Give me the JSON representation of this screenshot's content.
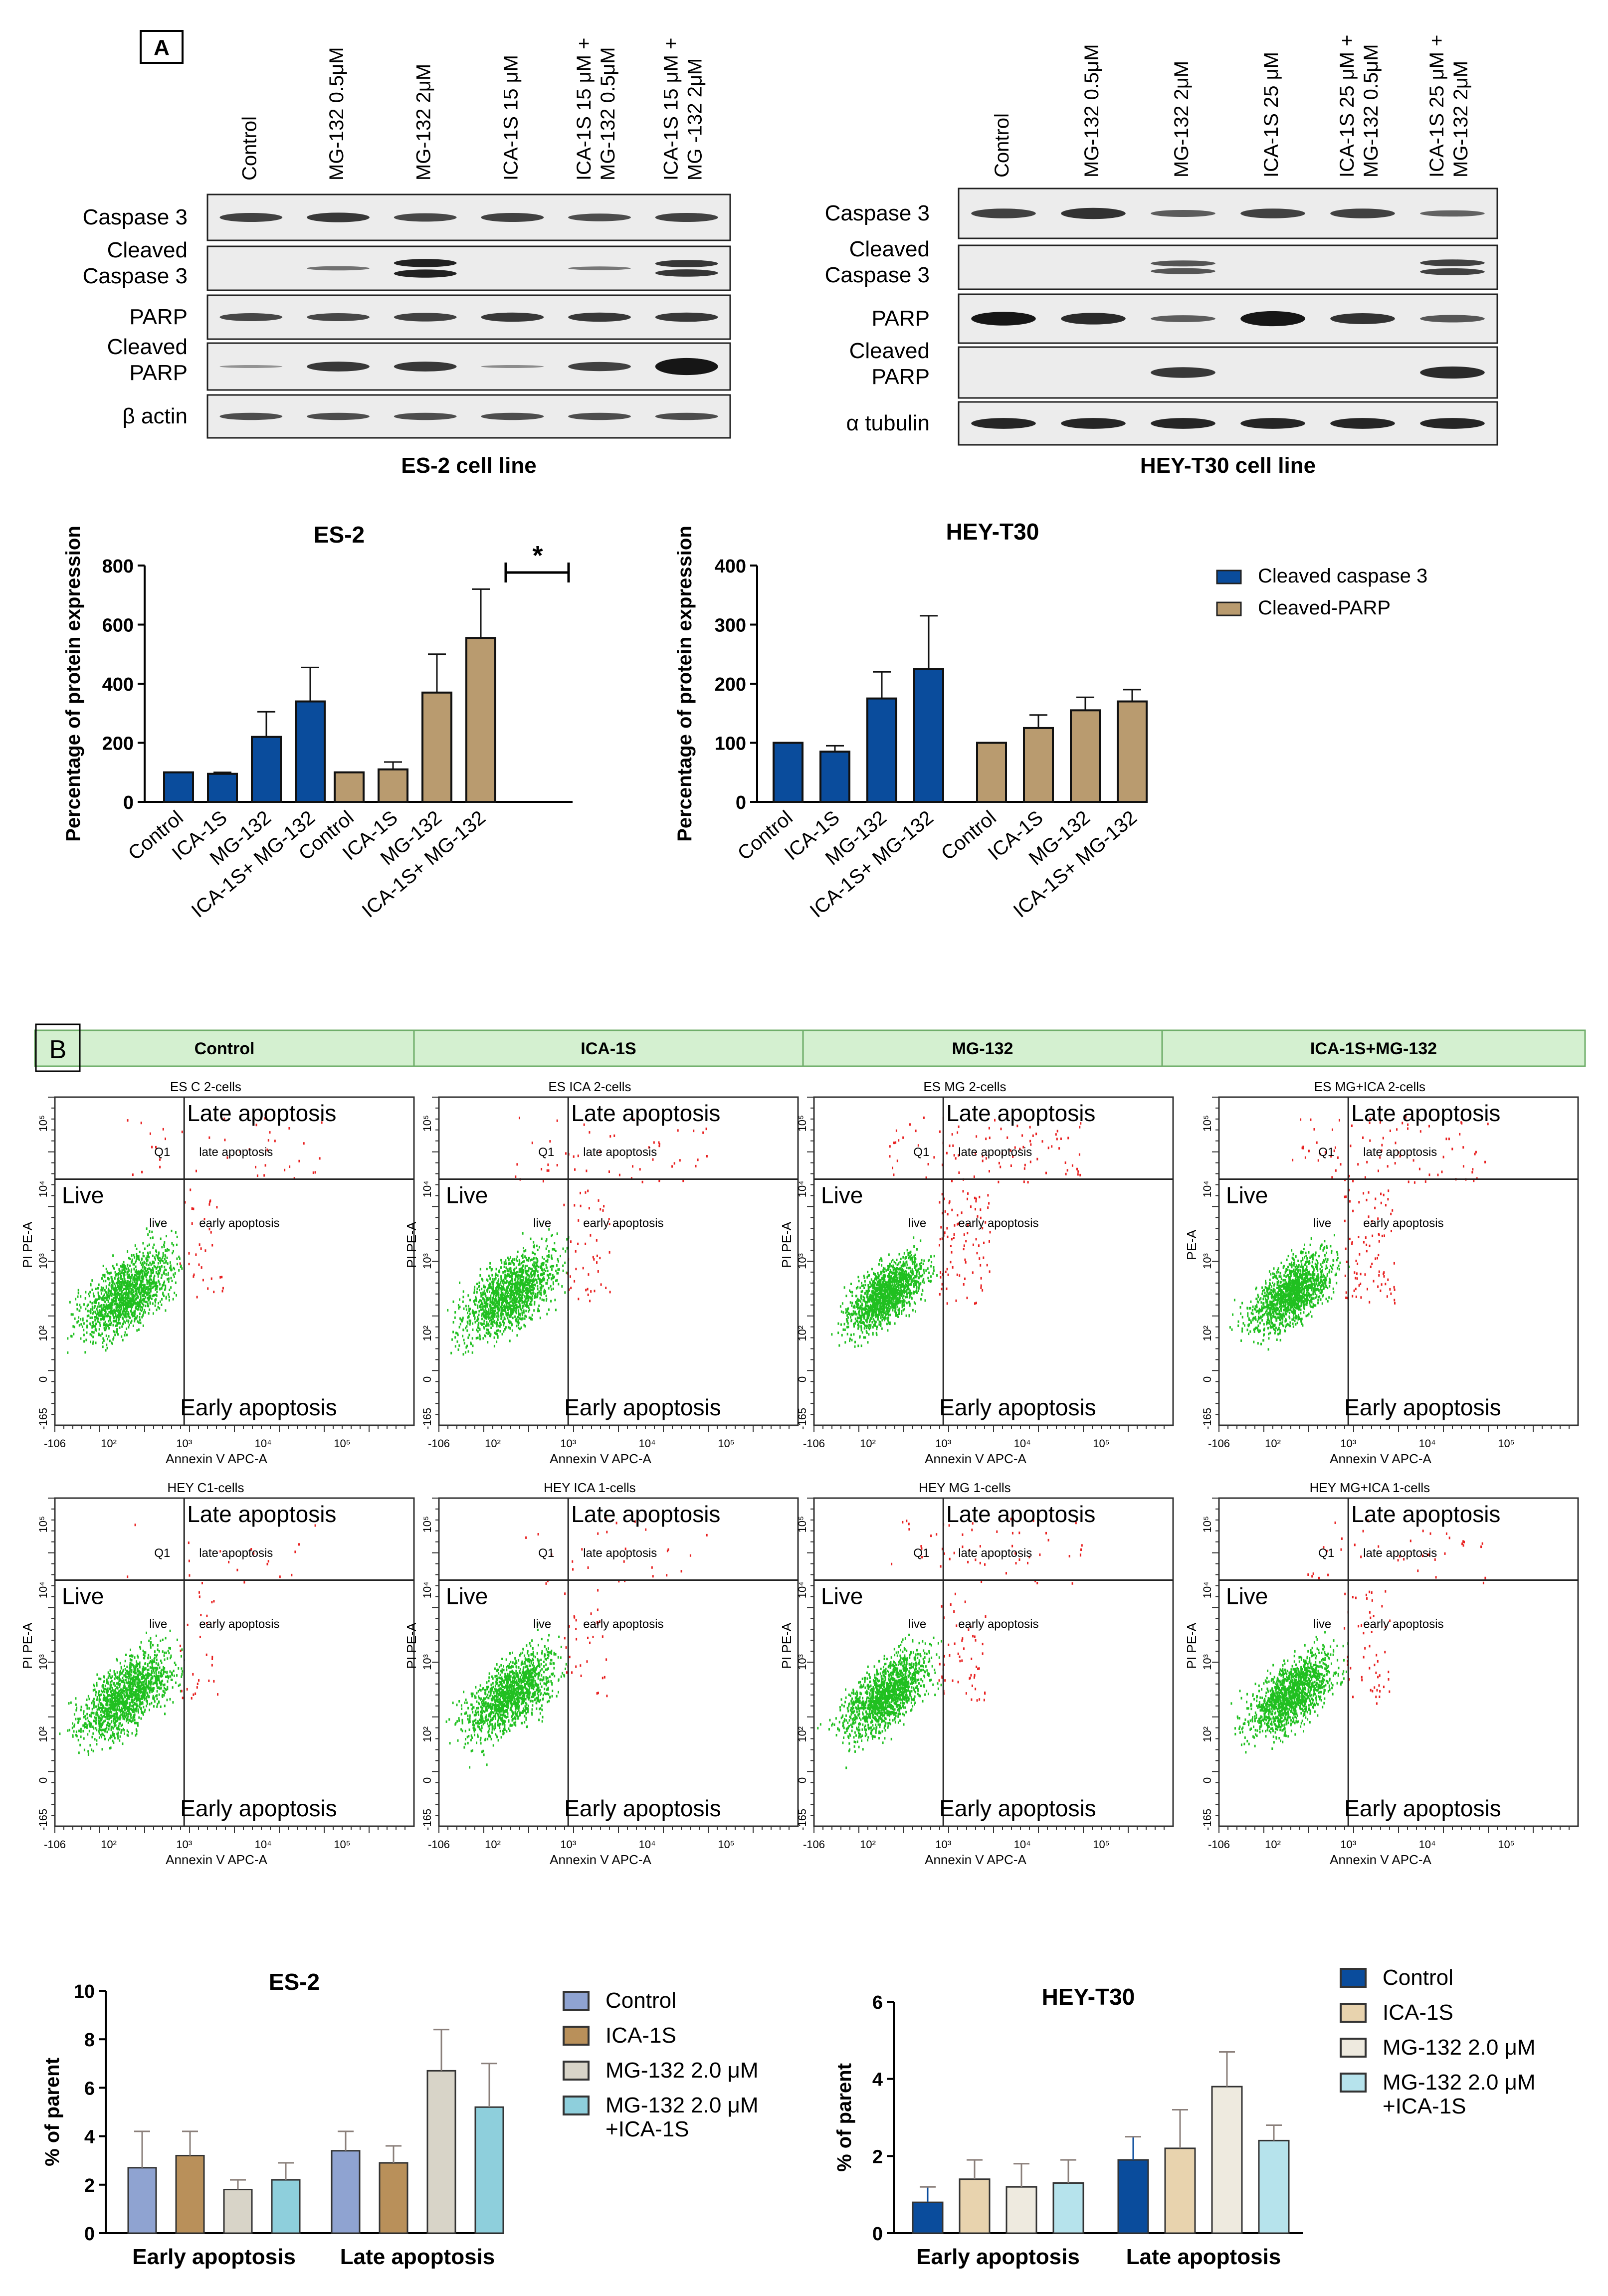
{
  "panel_a": {
    "label": "A",
    "es2": {
      "lanes": [
        "Control",
        "MG-132 0.5μM",
        "MG-132 2μM",
        "ICA-1S 15 μM",
        "ICA-1S 15 μM + MG-132 0.5μM",
        "ICA-1S  15 μM + MG -132 2μM"
      ],
      "rows": [
        "Caspase 3",
        "Cleaved Caspase 3",
        "PARP",
        "Cleaved PARP",
        "β actin"
      ],
      "caption": "ES-2 cell line"
    },
    "hey": {
      "lanes": [
        "Control",
        "MG-132 0.5μM",
        "MG-132 2μM",
        "ICA-1S 25 μM",
        "ICA-1S 25 μM + MG-132 0.5μM",
        "ICA-1S  25 μM + MG-132 2μM"
      ],
      "rows": [
        "Caspase 3",
        "Cleaved Caspase 3",
        "PARP",
        "Cleaved PARP",
        "α tubulin"
      ],
      "caption": "HEY-T30 cell line"
    }
  },
  "chart_data": [
    {
      "type": "bar",
      "title": "ES-2",
      "ylabel": "Percentage of protein expression",
      "ylim": [
        0,
        800
      ],
      "yticks": [
        0,
        200,
        400,
        600,
        800
      ],
      "categories": [
        "Control",
        "ICA-1S",
        "MG-132",
        "ICA-1S+ MG-132"
      ],
      "series": [
        {
          "name": "Cleaved caspase 3",
          "color": "#0a4c9c",
          "values": [
            100,
            95,
            220,
            340
          ],
          "errors": [
            0,
            5,
            85,
            115
          ]
        },
        {
          "name": "Cleaved-PARP",
          "color": "#b99b6f",
          "values": [
            100,
            110,
            370,
            555
          ],
          "errors": [
            0,
            25,
            130,
            165
          ]
        }
      ],
      "annotation": "*"
    },
    {
      "type": "bar",
      "title": "HEY-T30",
      "ylabel": "Percentage of protein expression",
      "ylim": [
        0,
        400
      ],
      "yticks": [
        0,
        100,
        200,
        300,
        400
      ],
      "categories": [
        "Control",
        "ICA-1S",
        "MG-132",
        "ICA-1S+ MG-132"
      ],
      "series": [
        {
          "name": "Cleaved caspase 3",
          "color": "#0a4c9c",
          "values": [
            100,
            85,
            175,
            225
          ],
          "errors": [
            0,
            10,
            45,
            90
          ]
        },
        {
          "name": "Cleaved-PARP",
          "color": "#b99b6f",
          "values": [
            100,
            125,
            155,
            170
          ],
          "errors": [
            0,
            22,
            22,
            20
          ]
        }
      ]
    },
    {
      "type": "bar",
      "title": "ES-2",
      "ylabel": "% of parent",
      "ylim": [
        0,
        10
      ],
      "yticks": [
        0,
        2,
        4,
        6,
        8,
        10
      ],
      "categories": [
        "Early apoptosis",
        "Late apoptosis"
      ],
      "series": [
        {
          "name": "Control",
          "color": "#8fa3d1",
          "values": [
            2.7,
            3.4
          ],
          "errors": [
            1.5,
            0.8
          ]
        },
        {
          "name": "ICA-1S",
          "color": "#b9905a",
          "values": [
            3.2,
            2.9
          ],
          "errors": [
            1.0,
            0.7
          ]
        },
        {
          "name": "MG-132 2.0 μM",
          "color": "#d8d4c8",
          "values": [
            1.8,
            6.7
          ],
          "errors": [
            0.4,
            1.7
          ]
        },
        {
          "name": "MG-132 2.0 μM +ICA-1S",
          "color": "#8ecfdc",
          "values": [
            2.2,
            5.2
          ],
          "errors": [
            0.7,
            1.8
          ]
        }
      ]
    },
    {
      "type": "bar",
      "title": "HEY-T30",
      "ylabel": "% of parent",
      "ylim": [
        0,
        6
      ],
      "yticks": [
        0,
        2,
        4,
        6
      ],
      "categories": [
        "Early apoptosis",
        "Late apoptosis"
      ],
      "series": [
        {
          "name": "Control",
          "color": "#0a4c9c",
          "values": [
            0.8,
            1.9
          ],
          "errors": [
            0.4,
            0.6
          ]
        },
        {
          "name": "ICA-1S",
          "color": "#e8d3ae",
          "values": [
            1.4,
            2.2
          ],
          "errors": [
            0.5,
            1.0
          ]
        },
        {
          "name": "MG-132 2.0 μM",
          "color": "#eeeadf",
          "values": [
            1.2,
            3.8
          ],
          "errors": [
            0.6,
            0.9
          ]
        },
        {
          "name": "MG-132 2.0 μM +ICA-1S",
          "color": "#b6e3ec",
          "values": [
            1.3,
            2.4
          ],
          "errors": [
            0.6,
            0.4
          ]
        }
      ]
    }
  ],
  "panel_b": {
    "label": "B",
    "headers": [
      "Control",
      "ICA-1S",
      "MG-132",
      "ICA-1S+MG-132"
    ],
    "plots": [
      {
        "title": "ES C 2-cells",
        "seed": 11,
        "spread": 1.0,
        "red": 0.12
      },
      {
        "title": "ES ICA 2-cells",
        "seed": 23,
        "spread": 1.05,
        "red": 0.16
      },
      {
        "title": "ES MG 2-cells",
        "seed": 37,
        "spread": 0.85,
        "red": 0.3
      },
      {
        "title": "ES MG+ICA 2-cells",
        "seed": 41,
        "spread": 0.9,
        "red": 0.28
      },
      {
        "title": "HEY C1-cells",
        "seed": 53,
        "spread": 1.0,
        "red": 0.08
      },
      {
        "title": "HEY ICA 1-cells",
        "seed": 67,
        "spread": 1.0,
        "red": 0.1
      },
      {
        "title": "HEY MG 1-cells",
        "seed": 71,
        "spread": 0.95,
        "red": 0.18
      },
      {
        "title": "HEY MG+ICA 1-cells",
        "seed": 83,
        "spread": 0.95,
        "red": 0.15
      }
    ],
    "quadrants": {
      "late": "Late apoptosis",
      "live": "Live",
      "early": "Early apoptosis",
      "q1": "Q1",
      "late_small": "late apoptosis",
      "live_small": "live",
      "early_small": "early apoptosis"
    },
    "axes": {
      "x": "Annexin V APC-A",
      "y": "PI PE-A",
      "yalt": "PE-A"
    },
    "ticks": {
      "xmin": "-106",
      "x2": "10²",
      "x3": "10³",
      "x4": "10⁴",
      "x5": "10⁵",
      "ymin": "-165",
      "y0": "0",
      "y2": "10²",
      "y3": "10³",
      "y4": "10⁴",
      "y5": "10⁵"
    }
  }
}
